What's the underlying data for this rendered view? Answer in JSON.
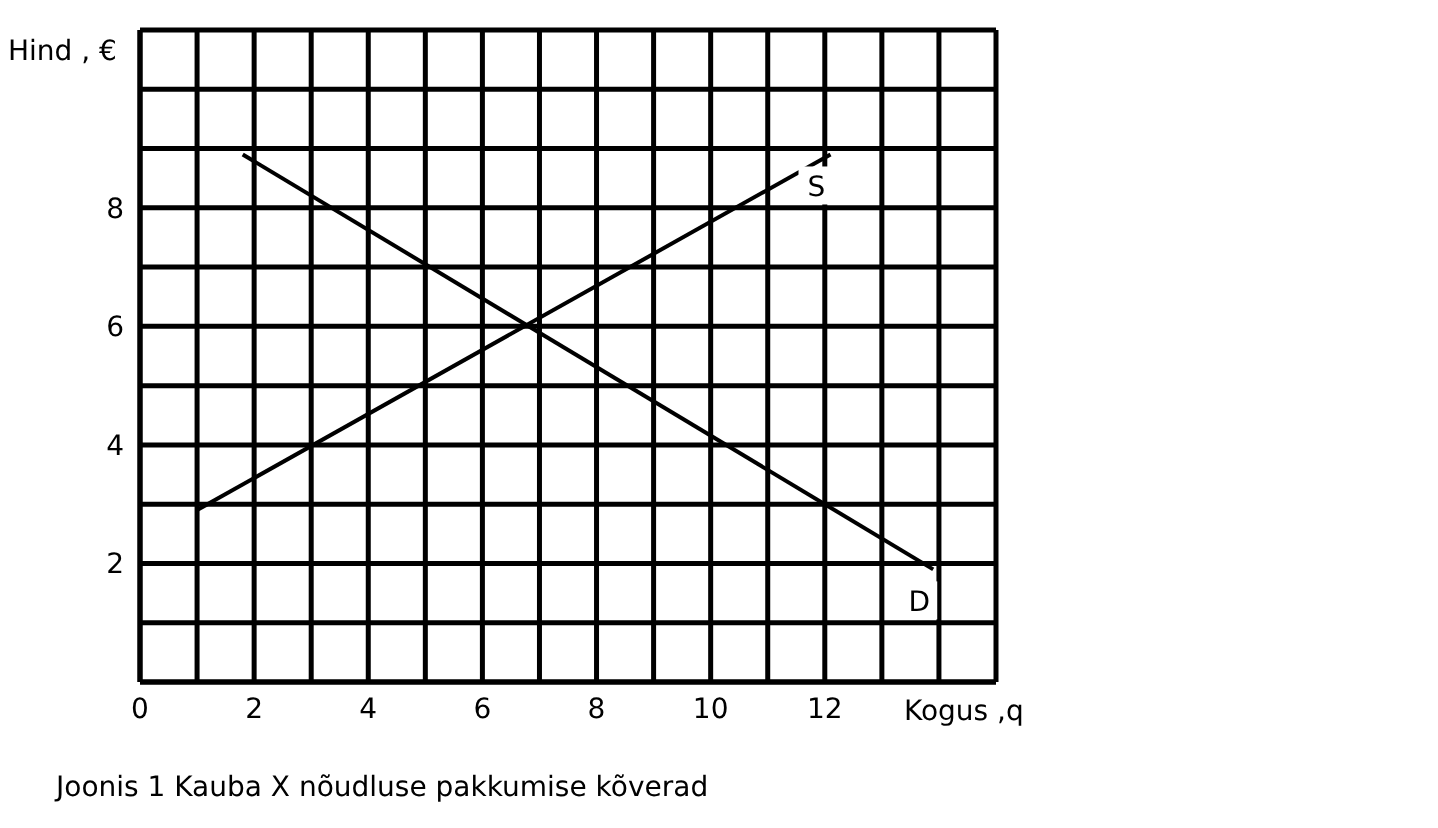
{
  "chart_data": {
    "type": "line",
    "xlabel": "Kogus ,q",
    "ylabel": "Hind , €",
    "annotations": [
      "Joonis 1  Kauba X nõudluse pakkumise kõverad"
    ],
    "xlim": [
      0,
      15
    ],
    "ylim": [
      0,
      11
    ],
    "xticks": [
      0,
      {
        "value": 1,
        "label": null
      },
      2,
      {
        "value": 3,
        "label": null
      },
      4,
      {
        "value": 5,
        "label": null
      },
      6,
      {
        "value": 7,
        "label": null
      },
      8,
      {
        "value": 9,
        "label": null
      },
      10,
      {
        "value": 11,
        "label": null
      },
      12,
      {
        "value": 13,
        "label": null
      },
      {
        "value": 14,
        "label": null
      },
      {
        "value": 15,
        "label": null
      }
    ],
    "yticks": [
      {
        "value": 0,
        "label": null
      },
      {
        "value": 1,
        "label": null
      },
      2,
      {
        "value": 3,
        "label": null
      },
      4,
      {
        "value": 5,
        "label": null
      },
      6,
      {
        "value": 7,
        "label": null
      },
      8,
      {
        "value": 9,
        "label": null
      },
      {
        "value": 10,
        "label": null
      },
      {
        "value": 11,
        "label": null
      }
    ],
    "grid": true,
    "marker": "none",
    "line_style": "solid",
    "legend": false,
    "series": [
      {
        "name": "S",
        "color": "#000000",
        "x": [
          1.0,
          12.1
        ],
        "values": [
          2.9,
          8.9
        ]
      },
      {
        "name": "D",
        "color": "#000000",
        "x": [
          1.8,
          13.9
        ],
        "values": [
          8.9,
          1.9
        ]
      }
    ]
  }
}
